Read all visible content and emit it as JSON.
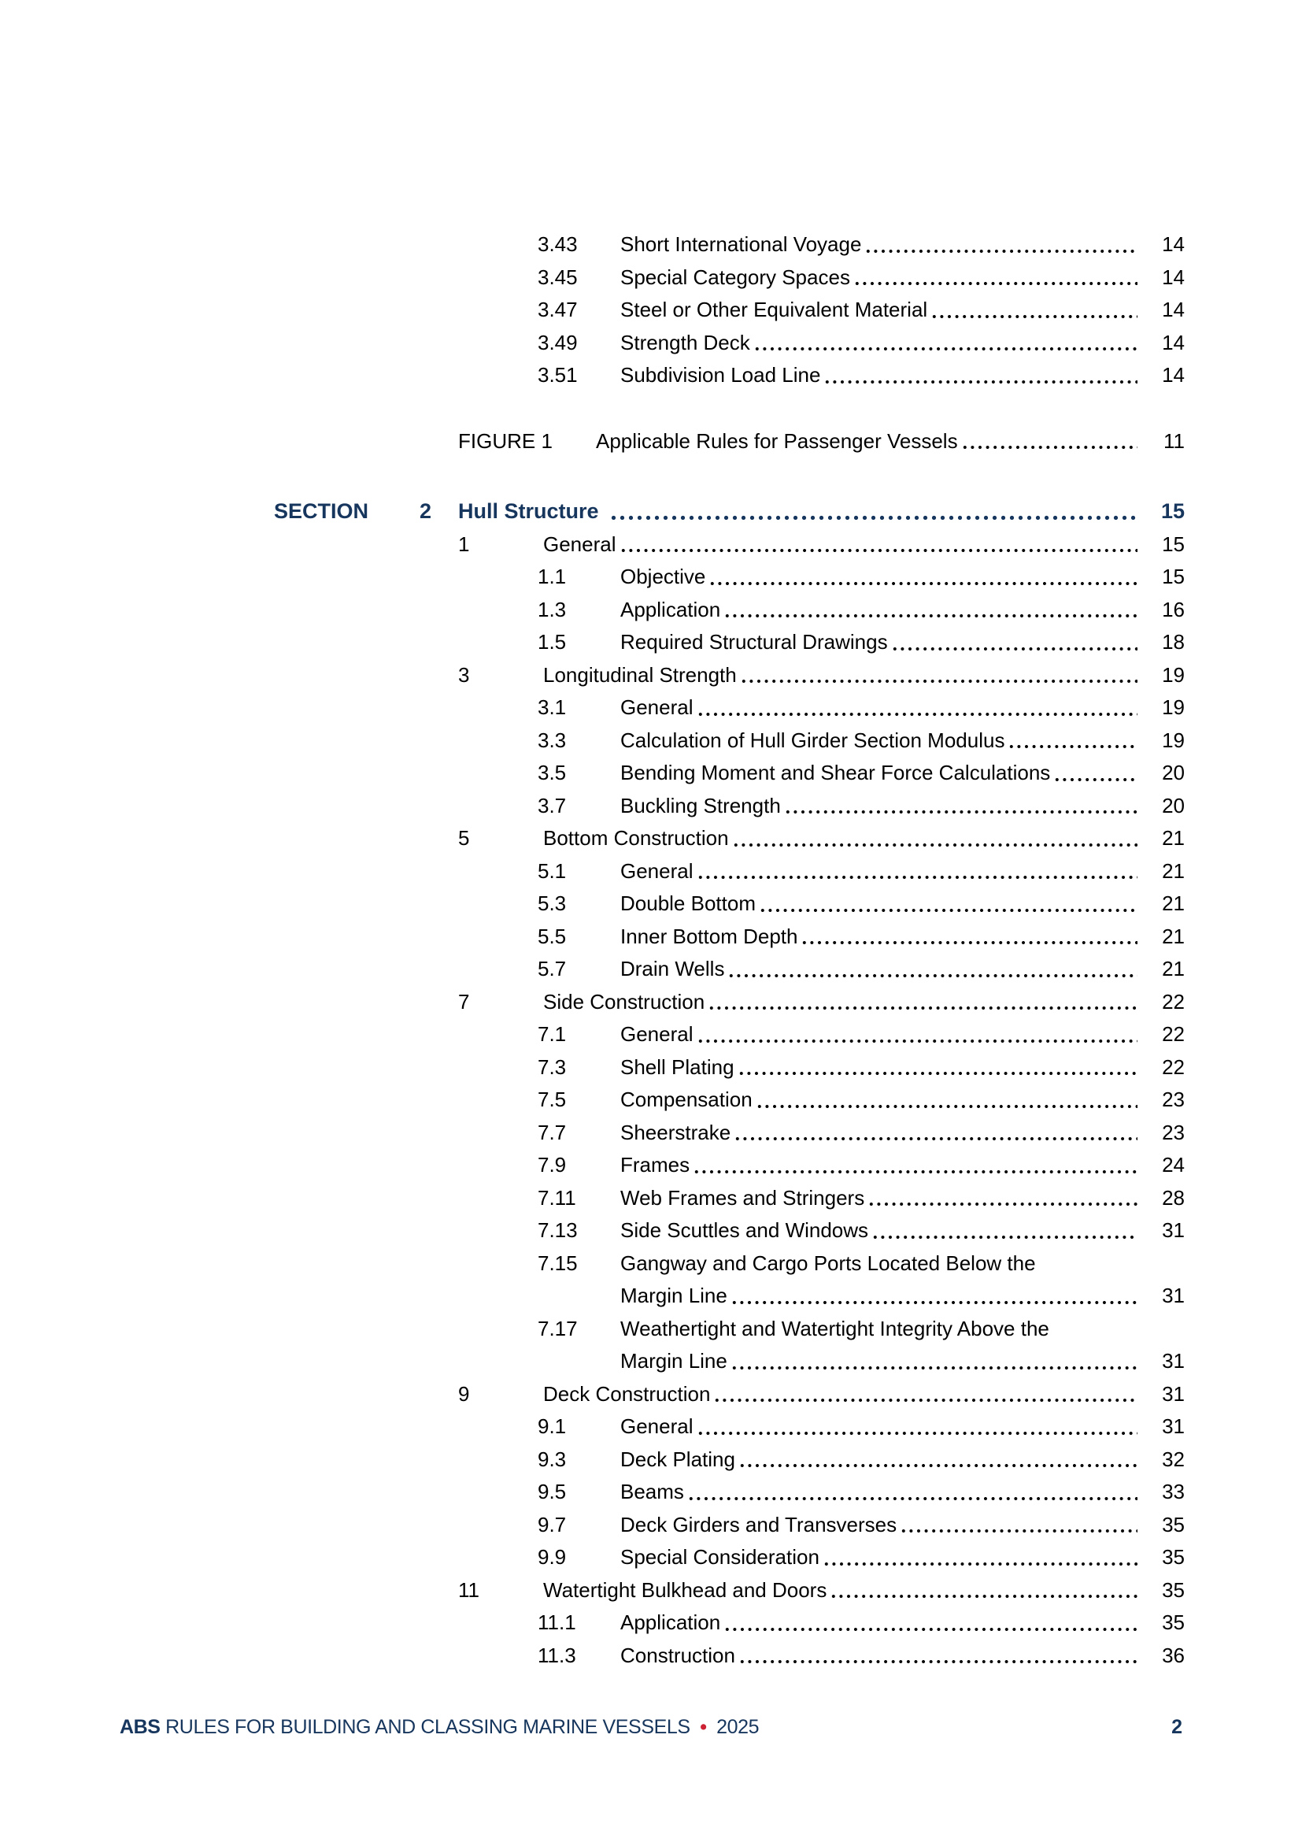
{
  "colors": {
    "heading_navy": "#17365d",
    "accent_red": "#cc2233",
    "body_text": "#000000",
    "page_bg": "#ffffff"
  },
  "toc": {
    "tail_subitems": [
      {
        "level": "sub",
        "num": "3.43",
        "title": "Short International Voyage",
        "page": "14"
      },
      {
        "level": "sub",
        "num": "3.45",
        "title": "Special Category Spaces",
        "page": "14"
      },
      {
        "level": "sub",
        "num": "3.47",
        "title": "Steel or Other Equivalent Material",
        "page": "14"
      },
      {
        "level": "sub",
        "num": "3.49",
        "title": "Strength Deck",
        "page": "14"
      },
      {
        "level": "sub",
        "num": "3.51",
        "title": "Subdivision Load Line",
        "page": "14"
      }
    ],
    "figure": {
      "label": "FIGURE 1",
      "title": "Applicable Rules for Passenger Vessels",
      "page": "11"
    },
    "section": {
      "label": "SECTION",
      "number": "2",
      "title": "Hull Structure",
      "page": "15"
    },
    "entries": [
      {
        "level": "chapter",
        "num": "1",
        "title": "General",
        "page": "15"
      },
      {
        "level": "sub",
        "num": "1.1",
        "title": "Objective",
        "page": "15"
      },
      {
        "level": "sub",
        "num": "1.3",
        "title": "Application",
        "page": "16"
      },
      {
        "level": "sub",
        "num": "1.5",
        "title": "Required Structural Drawings",
        "page": "18"
      },
      {
        "level": "chapter",
        "num": "3",
        "title": "Longitudinal Strength",
        "page": "19"
      },
      {
        "level": "sub",
        "num": "3.1",
        "title": "General",
        "page": "19"
      },
      {
        "level": "sub",
        "num": "3.3",
        "title": "Calculation of Hull Girder Section Modulus",
        "page": "19"
      },
      {
        "level": "sub",
        "num": "3.5",
        "title": "Bending Moment and Shear Force Calculations",
        "page": "20"
      },
      {
        "level": "sub",
        "num": "3.7",
        "title": "Buckling Strength",
        "page": "20"
      },
      {
        "level": "chapter",
        "num": "5",
        "title": "Bottom Construction",
        "page": "21"
      },
      {
        "level": "sub",
        "num": "5.1",
        "title": "General",
        "page": "21"
      },
      {
        "level": "sub",
        "num": "5.3",
        "title": "Double Bottom",
        "page": "21"
      },
      {
        "level": "sub",
        "num": "5.5",
        "title": "Inner Bottom Depth",
        "page": "21"
      },
      {
        "level": "sub",
        "num": "5.7",
        "title": "Drain Wells",
        "page": "21"
      },
      {
        "level": "chapter",
        "num": "7",
        "title": "Side Construction",
        "page": "22"
      },
      {
        "level": "sub",
        "num": "7.1",
        "title": "General",
        "page": "22"
      },
      {
        "level": "sub",
        "num": "7.3",
        "title": "Shell Plating",
        "page": "22"
      },
      {
        "level": "sub",
        "num": "7.5",
        "title": "Compensation",
        "page": "23"
      },
      {
        "level": "sub",
        "num": "7.7",
        "title": "Sheerstrake",
        "page": "23"
      },
      {
        "level": "sub",
        "num": "7.9",
        "title": "Frames",
        "page": "24"
      },
      {
        "level": "sub",
        "num": "7.11",
        "title": "Web Frames and Stringers",
        "page": "28"
      },
      {
        "level": "sub",
        "num": "7.13",
        "title": "Side Scuttles and Windows",
        "page": "31"
      },
      {
        "level": "sub",
        "num": "7.15",
        "title": "Gangway and Cargo Ports Located Below the",
        "title2": "Margin Line",
        "page": "31"
      },
      {
        "level": "sub",
        "num": "7.17",
        "title": "Weathertight and Watertight Integrity Above the",
        "title2": "Margin Line",
        "page": "31"
      },
      {
        "level": "chapter",
        "num": "9",
        "title": "Deck Construction",
        "page": "31"
      },
      {
        "level": "sub",
        "num": "9.1",
        "title": "General",
        "page": "31"
      },
      {
        "level": "sub",
        "num": "9.3",
        "title": "Deck Plating",
        "page": "32"
      },
      {
        "level": "sub",
        "num": "9.5",
        "title": "Beams",
        "page": "33"
      },
      {
        "level": "sub",
        "num": "9.7",
        "title": "Deck Girders and Transverses",
        "page": "35"
      },
      {
        "level": "sub",
        "num": "9.9",
        "title": "Special Consideration",
        "page": "35"
      },
      {
        "level": "chapter",
        "num": "11",
        "title": "Watertight Bulkhead and Doors",
        "page": "35"
      },
      {
        "level": "sub",
        "num": "11.1",
        "title": "Application",
        "page": "35"
      },
      {
        "level": "sub",
        "num": "11.3",
        "title": "Construction",
        "page": "36"
      }
    ]
  },
  "footer": {
    "brand": "ABS",
    "title": "RULES FOR BUILDING AND CLASSING MARINE VESSELS",
    "bullet": "•",
    "year": "2025",
    "page_number": "2"
  }
}
